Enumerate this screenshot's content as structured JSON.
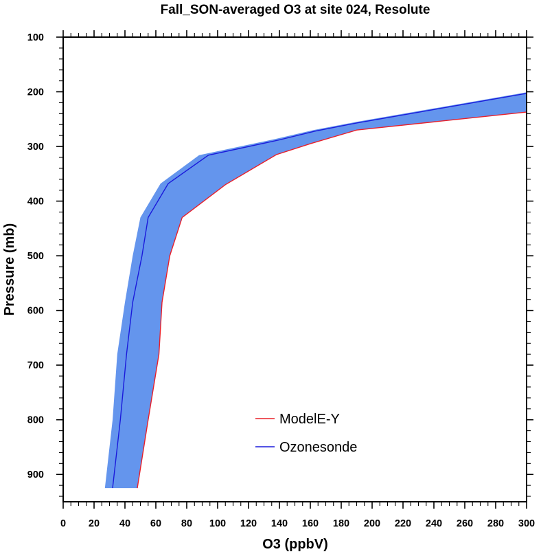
{
  "chart_data": {
    "type": "line",
    "title": "Fall_SON-averaged O3 at site 024, Resolute",
    "xlabel": "O3 (ppbV)",
    "ylabel": "Pressure (mb)",
    "xlim": [
      0,
      300
    ],
    "ylim": [
      100,
      950
    ],
    "y_inverted": true,
    "x_ticks": [
      0,
      20,
      40,
      60,
      80,
      100,
      120,
      140,
      160,
      180,
      200,
      220,
      240,
      260,
      280,
      300
    ],
    "y_ticks": [
      100,
      200,
      300,
      400,
      500,
      600,
      700,
      800,
      900
    ],
    "grid": false,
    "legend_position": "bottom-center",
    "series": [
      {
        "name": "ModelE-Y",
        "color": "#e8202a",
        "points": [
          [
            300,
            237
          ],
          [
            190,
            270
          ],
          [
            160,
            295
          ],
          [
            138,
            315
          ],
          [
            105,
            370
          ],
          [
            77,
            430
          ],
          [
            69,
            500
          ],
          [
            64,
            585
          ],
          [
            62,
            680
          ],
          [
            55,
            800
          ],
          [
            48,
            925
          ]
        ]
      },
      {
        "name": "Ozonesonde",
        "color": "#1a1adb",
        "points": [
          [
            300,
            203
          ],
          [
            190,
            257
          ],
          [
            163,
            272
          ],
          [
            140,
            288
          ],
          [
            94,
            316
          ],
          [
            68,
            368
          ],
          [
            55,
            430
          ],
          [
            51,
            500
          ],
          [
            45,
            585
          ],
          [
            41,
            680
          ],
          [
            37,
            800
          ],
          [
            32,
            925
          ]
        ]
      }
    ],
    "band": {
      "color": "#6495ed",
      "lower": [
        [
          300,
          201
        ],
        [
          190,
          255
        ],
        [
          162,
          270
        ],
        [
          138,
          286
        ],
        [
          88,
          316
        ],
        [
          63,
          368
        ],
        [
          50,
          430
        ],
        [
          45,
          500
        ],
        [
          40,
          585
        ],
        [
          35,
          680
        ],
        [
          32,
          800
        ],
        [
          27,
          925
        ]
      ],
      "upper": [
        [
          300,
          237
        ],
        [
          190,
          270
        ],
        [
          160,
          295
        ],
        [
          138,
          315
        ],
        [
          105,
          370
        ],
        [
          77,
          430
        ],
        [
          69,
          500
        ],
        [
          64,
          585
        ],
        [
          62,
          680
        ],
        [
          55,
          800
        ],
        [
          48,
          925
        ]
      ]
    }
  }
}
